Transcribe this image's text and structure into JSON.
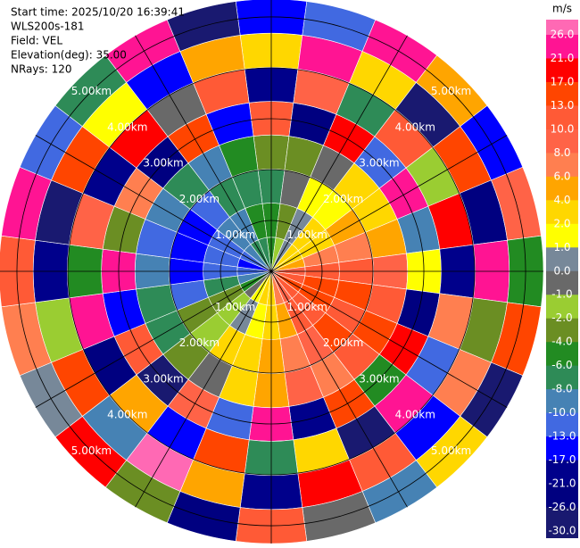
{
  "chart_data": {
    "type": "ppi",
    "header": [
      "Start time: 2025/10/20 16:39:41",
      "WLS200s-181",
      "Field: VEL",
      "Elevation(deg): 35.00",
      "NRays: 120"
    ],
    "rlim": [
      0,
      5.35
    ],
    "rings": [
      {
        "value": 1,
        "label": "1.00km"
      },
      {
        "value": 2,
        "label": "2.00km"
      },
      {
        "value": 3,
        "label": "3.00km"
      },
      {
        "value": 4,
        "label": "4.00km"
      },
      {
        "value": 5,
        "label": "5.00km"
      }
    ],
    "azimuths": [
      0,
      15,
      30,
      45,
      60,
      75,
      90,
      105,
      120,
      135,
      150,
      165,
      180,
      195,
      210,
      225,
      240,
      255,
      270,
      285,
      300,
      315,
      330,
      345
    ],
    "gate_edges": [
      0,
      0.67,
      1.34,
      2.01,
      2.68,
      3.34,
      4.01,
      4.68,
      5.35
    ],
    "values": [
      [
        -6,
        -5,
        -8,
        -4,
        12,
        -21,
        3,
        -17
      ],
      [
        -2,
        -3,
        -1,
        -4,
        -26,
        8,
        21,
        -13
      ],
      [
        0,
        0.5,
        1,
        -1,
        17,
        -8,
        2,
        26
      ],
      [
        2,
        3,
        1.5,
        2,
        -13,
        10,
        -30,
        5
      ],
      [
        3,
        3,
        4,
        2,
        22,
        -2,
        13,
        -17
      ],
      [
        5,
        7,
        6,
        4,
        -10,
        18,
        -24,
        9
      ],
      [
        9,
        11,
        10,
        8,
        1,
        -19,
        25,
        -6
      ],
      [
        12,
        14,
        13,
        11,
        -22,
        6,
        -3,
        16
      ],
      [
        14,
        15,
        12,
        13,
        19,
        -12,
        7,
        -28
      ],
      [
        12,
        11,
        13,
        10,
        -5,
        24,
        -15,
        3
      ],
      [
        9,
        10,
        8,
        7,
        14,
        -27,
        11,
        -9
      ],
      [
        6,
        5,
        7,
        8,
        -18,
        2,
        20,
        -1
      ],
      [
        3,
        2,
        4,
        5,
        23,
        -7,
        -20,
        12
      ],
      [
        2,
        1.5,
        3,
        2,
        -11,
        15,
        5,
        -25
      ],
      [
        1,
        0.5,
        2,
        -1,
        8,
        -16,
        27,
        -4
      ],
      [
        -1,
        -2,
        -1.5,
        -3,
        -29,
        4,
        -9,
        18
      ],
      [
        -5,
        -4,
        -3,
        -7,
        11,
        -23,
        16,
        0.5
      ],
      [
        -9,
        -8,
        -11,
        -7,
        -14,
        21,
        -2,
        7
      ],
      [
        -12,
        -11,
        -14,
        -10,
        25,
        -5,
        -18,
        10
      ],
      [
        -14,
        -12,
        -15,
        -13,
        -3,
        9,
        -27,
        22
      ],
      [
        -12,
        -11,
        -14,
        -9,
        6,
        -20,
        14,
        -11
      ],
      [
        -10,
        -9,
        -12,
        -8,
        -24,
        17,
        1.5,
        -7
      ],
      [
        -8,
        -9,
        -7,
        -10,
        15,
        -1,
        -15,
        24
      ],
      [
        -7,
        -6,
        -8,
        -5,
        -16,
        12,
        4,
        -30
      ]
    ],
    "colorbar": {
      "unit": "m/s",
      "levels": [
        {
          "value": 26,
          "label": "26.0"
        },
        {
          "value": 21,
          "label": "21.0"
        },
        {
          "value": 17,
          "label": "17.0"
        },
        {
          "value": 13,
          "label": "13.0"
        },
        {
          "value": 10,
          "label": "10.0"
        },
        {
          "value": 8,
          "label": "8.0"
        },
        {
          "value": 6,
          "label": "6.0"
        },
        {
          "value": 4,
          "label": "4.0"
        },
        {
          "value": 2,
          "label": "2.0"
        },
        {
          "value": 1,
          "label": "1.0"
        },
        {
          "value": 0,
          "label": "0.0"
        },
        {
          "value": -1,
          "label": "-1.0"
        },
        {
          "value": -2,
          "label": "-2.0"
        },
        {
          "value": -4,
          "label": "-4.0"
        },
        {
          "value": -6,
          "label": "-6.0"
        },
        {
          "value": -8,
          "label": "-8.0"
        },
        {
          "value": -10,
          "label": "-10.0"
        },
        {
          "value": -13,
          "label": "-13.0"
        },
        {
          "value": -17,
          "label": "-17.0"
        },
        {
          "value": -21,
          "label": "-21.0"
        },
        {
          "value": -26,
          "label": "-26.0"
        },
        {
          "value": -30,
          "label": "-30.0"
        }
      ],
      "colors": [
        "#ff1493",
        "#ff0000",
        "#ff4500",
        "#ff5a36",
        "#ff6347",
        "#ff7f50",
        "#ffa500",
        "#ffd700",
        "#ffff00",
        "#778899",
        "#696969",
        "#9acd32",
        "#6b8e23",
        "#228b22",
        "#2e8b57",
        "#4682b4",
        "#4169e1",
        "#0000ff",
        "#00008b",
        "#000080",
        "#191970"
      ],
      "over_color": "#ff69b4"
    }
  }
}
